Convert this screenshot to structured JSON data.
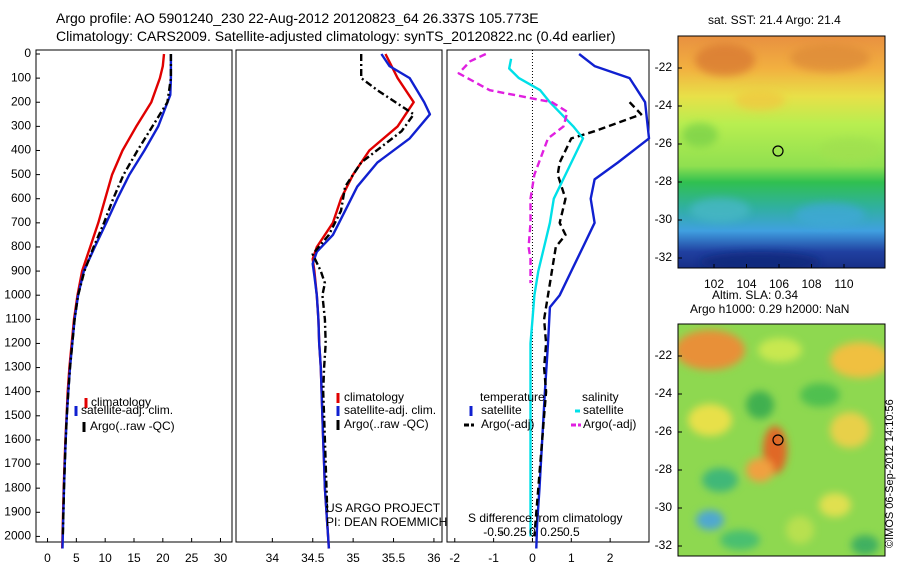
{
  "title": {
    "line1": "Argo profile: AO 5901240_230 22-Aug-2012 20120823_64 26.337S 105.773E",
    "line2": "Climatology: CARS2009. Satellite-adjusted climatology: synTS_20120822.nc (0.4d earlier)"
  },
  "colors": {
    "climatology": "#e00000",
    "satellite": "#1020d0",
    "argo": "#000000",
    "salinity_sat": "#00e0e8",
    "salinity_argo": "#e020e0"
  },
  "chart_data": [
    {
      "type": "line",
      "id": "temperature-profile",
      "y_label_values": [
        0,
        100,
        200,
        300,
        400,
        500,
        600,
        700,
        800,
        900,
        1000,
        1100,
        1200,
        1300,
        1400,
        1500,
        1600,
        1700,
        1800,
        1900,
        2000
      ],
      "x_ticks": [
        0,
        5,
        10,
        15,
        20,
        25,
        30
      ],
      "xlim": [
        -2,
        32
      ],
      "ylim": [
        2050,
        -10
      ],
      "legend": [
        "climatology",
        "satellite-adj. clim.",
        "Argo(..raw -QC)"
      ],
      "legend_position": "lower-right",
      "series": [
        {
          "name": "climatology",
          "style": "solid",
          "color": "#e00000",
          "points": [
            [
              20.2,
              0
            ],
            [
              20.0,
              50
            ],
            [
              19.5,
              100
            ],
            [
              18.0,
              200
            ],
            [
              15.4,
              300
            ],
            [
              13.0,
              400
            ],
            [
              11.2,
              500
            ],
            [
              10.0,
              600
            ],
            [
              8.8,
              700
            ],
            [
              7.4,
              800
            ],
            [
              6.0,
              900
            ],
            [
              5.2,
              1000
            ],
            [
              4.6,
              1100
            ],
            [
              4.2,
              1200
            ],
            [
              3.8,
              1300
            ],
            [
              3.5,
              1400
            ],
            [
              3.3,
              1500
            ],
            [
              3.1,
              1600
            ],
            [
              2.95,
              1700
            ],
            [
              2.8,
              1800
            ],
            [
              2.7,
              1900
            ],
            [
              2.6,
              2000
            ],
            [
              2.55,
              2050
            ]
          ]
        },
        {
          "name": "satellite-adj. clim.",
          "style": "solid",
          "color": "#1020d0",
          "points": [
            [
              21.4,
              0
            ],
            [
              21.4,
              50
            ],
            [
              21.4,
              100
            ],
            [
              21.3,
              170
            ],
            [
              19.2,
              300
            ],
            [
              16.8,
              400
            ],
            [
              14.2,
              500
            ],
            [
              12.1,
              600
            ],
            [
              10.2,
              700
            ],
            [
              8.2,
              800
            ],
            [
              6.3,
              900
            ],
            [
              5.3,
              1000
            ],
            [
              4.7,
              1100
            ],
            [
              4.3,
              1200
            ],
            [
              3.9,
              1300
            ],
            [
              3.6,
              1400
            ],
            [
              3.35,
              1500
            ],
            [
              3.15,
              1600
            ],
            [
              3.0,
              1700
            ],
            [
              2.85,
              1800
            ],
            [
              2.75,
              1900
            ],
            [
              2.65,
              2000
            ],
            [
              2.6,
              2050
            ]
          ]
        },
        {
          "name": "Argo(..raw -QC)",
          "style": "dashdot",
          "color": "#000000",
          "points": [
            [
              21.4,
              0
            ],
            [
              21.4,
              100
            ],
            [
              20.8,
              200
            ],
            [
              18.2,
              300
            ],
            [
              15.6,
              400
            ],
            [
              13.2,
              500
            ],
            [
              11.4,
              600
            ],
            [
              9.8,
              700
            ],
            [
              8.0,
              800
            ],
            [
              6.4,
              900
            ],
            [
              5.3,
              1000
            ],
            [
              4.7,
              1100
            ],
            [
              4.3,
              1200
            ],
            [
              3.9,
              1300
            ],
            [
              3.6,
              1400
            ],
            [
              3.35,
              1500
            ],
            [
              3.15,
              1600
            ],
            [
              3.0,
              1700
            ],
            [
              2.85,
              1800
            ],
            [
              2.75,
              1900
            ],
            [
              2.65,
              2000
            ]
          ]
        }
      ]
    },
    {
      "type": "line",
      "id": "salinity-profile",
      "x_ticks": [
        34,
        34.5,
        35,
        35.5,
        36
      ],
      "xlim": [
        33.55,
        36.1
      ],
      "ylim": [
        2050,
        -10
      ],
      "legend": [
        "climatology",
        "satellite-adj. clim.",
        "Argo(..raw -QC)"
      ],
      "legend_position": "lower-right",
      "annotation": [
        "US ARGO PROJECT",
        "PI: DEAN ROEMMICH"
      ],
      "series": [
        {
          "name": "climatology",
          "style": "solid",
          "color": "#e00000",
          "points": [
            [
              35.4,
              0
            ],
            [
              35.55,
              100
            ],
            [
              35.75,
              200
            ],
            [
              35.55,
              300
            ],
            [
              35.2,
              400
            ],
            [
              35.0,
              500
            ],
            [
              34.85,
              600
            ],
            [
              34.75,
              700
            ],
            [
              34.55,
              800
            ],
            [
              34.5,
              850
            ],
            [
              34.52,
              900
            ],
            [
              34.55,
              1000
            ],
            [
              34.57,
              1100
            ],
            [
              34.58,
              1200
            ],
            [
              34.6,
              1300
            ],
            [
              34.61,
              1400
            ],
            [
              34.62,
              1500
            ],
            [
              34.63,
              1600
            ],
            [
              34.64,
              1700
            ],
            [
              34.65,
              1800
            ],
            [
              34.67,
              1900
            ],
            [
              34.69,
              2000
            ],
            [
              34.7,
              2050
            ]
          ]
        },
        {
          "name": "satellite-adj. clim.",
          "style": "solid",
          "color": "#1020d0",
          "points": [
            [
              35.35,
              0
            ],
            [
              35.45,
              50
            ],
            [
              35.7,
              100
            ],
            [
              35.88,
              200
            ],
            [
              35.95,
              250
            ],
            [
              35.7,
              350
            ],
            [
              35.3,
              450
            ],
            [
              35.05,
              550
            ],
            [
              34.9,
              650
            ],
            [
              34.75,
              750
            ],
            [
              34.55,
              820
            ],
            [
              34.5,
              870
            ],
            [
              34.52,
              920
            ],
            [
              34.55,
              1000
            ],
            [
              34.57,
              1100
            ],
            [
              34.58,
              1200
            ],
            [
              34.6,
              1300
            ],
            [
              34.61,
              1400
            ],
            [
              34.62,
              1500
            ],
            [
              34.63,
              1600
            ],
            [
              34.64,
              1700
            ],
            [
              34.65,
              1800
            ],
            [
              34.67,
              1900
            ],
            [
              34.69,
              2000
            ],
            [
              34.7,
              2050
            ]
          ]
        },
        {
          "name": "Argo(..raw -QC)",
          "style": "dashdot",
          "color": "#000000",
          "points": [
            [
              35.1,
              0
            ],
            [
              35.1,
              100
            ],
            [
              35.3,
              150
            ],
            [
              35.75,
              250
            ],
            [
              35.6,
              320
            ],
            [
              35.1,
              450
            ],
            [
              34.9,
              550
            ],
            [
              34.85,
              650
            ],
            [
              34.7,
              750
            ],
            [
              34.5,
              830
            ],
            [
              34.6,
              900
            ],
            [
              34.65,
              950
            ],
            [
              34.62,
              1000
            ],
            [
              34.65,
              1100
            ],
            [
              34.66,
              1200
            ],
            [
              34.64,
              1300
            ],
            [
              34.63,
              1400
            ],
            [
              34.64,
              1500
            ],
            [
              34.65,
              1600
            ],
            [
              34.66,
              1700
            ],
            [
              34.67,
              1800
            ],
            [
              34.68,
              1900
            ]
          ]
        }
      ]
    },
    {
      "type": "line",
      "id": "difference-profile",
      "x_ticks_temperature": [
        -2,
        -1,
        0,
        1,
        2
      ],
      "x_ticks_salinity": [
        -0.5,
        -0.25,
        0,
        0.25,
        0.5
      ],
      "xlim_temperature": [
        -2.2,
        3.0
      ],
      "zero_line": "dotted",
      "legend_temperature": {
        "heading": "temperature",
        "items": [
          "satellite",
          "Argo(-adj)"
        ]
      },
      "legend_salinity": {
        "heading": "salinity",
        "items": [
          "satellite",
          "Argo(-adj)"
        ]
      },
      "xlabel": "S difference from climatology",
      "series": [
        {
          "name": "satellite (temperature)",
          "style": "solid",
          "color": "#1020d0",
          "points": [
            [
              1.2,
              0
            ],
            [
              1.6,
              50
            ],
            [
              2.5,
              100
            ],
            [
              2.9,
              200
            ],
            [
              3.0,
              350
            ],
            [
              2.2,
              450
            ],
            [
              1.6,
              520
            ],
            [
              1.5,
              600
            ],
            [
              1.6,
              700
            ],
            [
              1.3,
              800
            ],
            [
              1.0,
              900
            ],
            [
              0.7,
              1000
            ],
            [
              0.45,
              1050
            ],
            [
              0.4,
              1200
            ],
            [
              0.32,
              1400
            ],
            [
              0.25,
              1600
            ],
            [
              0.18,
              1800
            ],
            [
              0.12,
              1950
            ],
            [
              0.1,
              2050
            ]
          ]
        },
        {
          "name": "Argo(-adj) (temperature)",
          "style": "dashed",
          "color": "#000000",
          "points": [
            [
              2.5,
              200
            ],
            [
              2.8,
              250
            ],
            [
              1.6,
              320
            ],
            [
              1.0,
              350
            ],
            [
              0.7,
              450
            ],
            [
              0.65,
              500
            ],
            [
              0.85,
              600
            ],
            [
              0.7,
              700
            ],
            [
              0.85,
              750
            ],
            [
              0.6,
              800
            ],
            [
              0.5,
              900
            ],
            [
              0.4,
              1000
            ],
            [
              0.3,
              1100
            ],
            [
              0.35,
              1200
            ],
            [
              0.3,
              1300
            ],
            [
              0.35,
              1400
            ],
            [
              0.3,
              1500
            ],
            [
              0.25,
              1600
            ],
            [
              0.2,
              1700
            ],
            [
              0.15,
              1800
            ],
            [
              0.1,
              1900
            ],
            [
              0.05,
              2000
            ]
          ]
        },
        {
          "name": "satellite (salinity)",
          "style": "solid",
          "color": "#00e0e8",
          "points": [
            [
              -0.55,
              20
            ],
            [
              -0.6,
              60
            ],
            [
              -0.35,
              100
            ],
            [
              0.2,
              150
            ],
            [
              0.45,
              200
            ],
            [
              0.75,
              250
            ],
            [
              1.05,
              300
            ],
            [
              1.3,
              350
            ],
            [
              0.85,
              500
            ],
            [
              0.55,
              600
            ],
            [
              0.45,
              700
            ],
            [
              0.3,
              800
            ],
            [
              0.15,
              900
            ],
            [
              0.05,
              1000
            ],
            [
              0.0,
              1100
            ],
            [
              -0.05,
              1200
            ],
            [
              -0.05,
              1400
            ],
            [
              -0.05,
              1600
            ],
            [
              -0.05,
              1800
            ],
            [
              -0.05,
              2000
            ]
          ]
        },
        {
          "name": "Argo(-adj) (salinity)",
          "style": "dashed",
          "color": "#e020e0",
          "points": [
            [
              -1.2,
              0
            ],
            [
              -1.6,
              30
            ],
            [
              -1.9,
              80
            ],
            [
              -1.1,
              150
            ],
            [
              0.5,
              200
            ],
            [
              0.9,
              240
            ],
            [
              0.8,
              300
            ],
            [
              0.4,
              350
            ],
            [
              0.05,
              500
            ],
            [
              -0.05,
              600
            ],
            [
              -0.05,
              700
            ],
            [
              -0.1,
              800
            ],
            [
              -0.05,
              850
            ],
            [
              -0.05,
              950
            ]
          ]
        }
      ]
    }
  ],
  "maps": [
    {
      "id": "sst-map",
      "title": "sat. SST: 21.4 Argo: 21.4",
      "y_ticks": [
        "-22",
        "-24",
        "-26",
        "-28",
        "-30",
        "-32"
      ],
      "x_ticks": [
        "102",
        "104",
        "106",
        "108",
        "110"
      ],
      "marker": "circle at float position"
    },
    {
      "id": "sla-map",
      "title_line1": "Altim. SLA: 0.34",
      "title_line2": "Argo h1000: 0.29 h2000: NaN",
      "y_ticks": [
        "-22",
        "-24",
        "-26",
        "-28",
        "-30",
        "-32"
      ],
      "marker": "circle at float position"
    }
  ],
  "footer_stamp": "©IMOS 06-Sep-2012 14:10:56"
}
